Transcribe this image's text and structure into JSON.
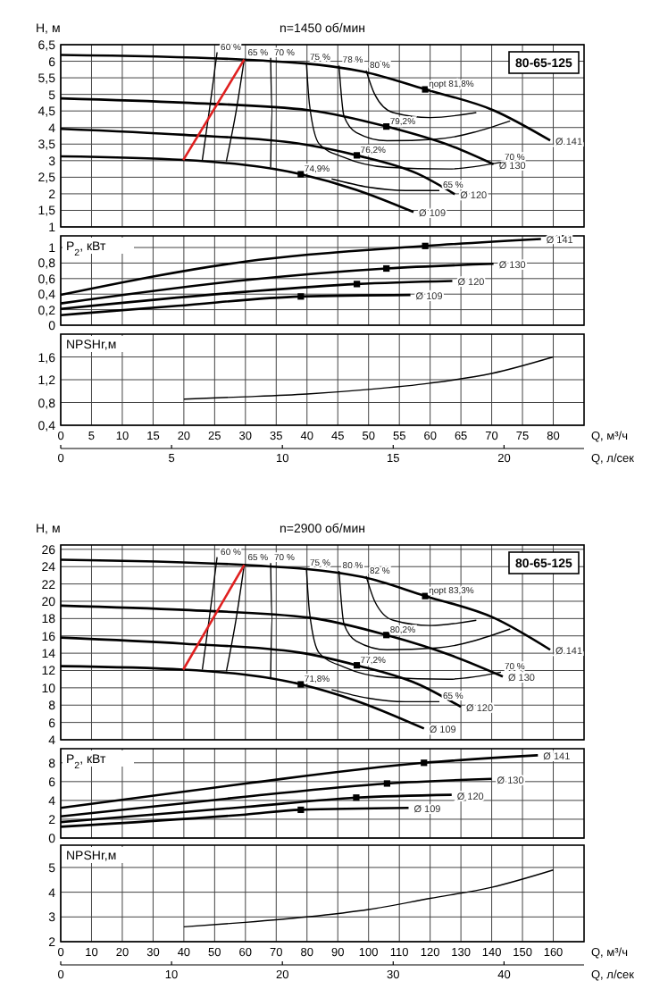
{
  "chart_data": [
    {
      "type": "line",
      "title": "n=1450 об/мин",
      "ylabel": "H, м",
      "xlim": [
        0,
        85
      ],
      "xticks": [
        0,
        5,
        10,
        15,
        20,
        25,
        30,
        35,
        40,
        45,
        50,
        55,
        60,
        65,
        70,
        75,
        80
      ],
      "ylim": [
        1,
        6.5
      ],
      "yticks": [
        1,
        {
          "value": 1.5,
          "label": "1,5"
        },
        2,
        {
          "value": 2.5,
          "label": "2,5"
        },
        3,
        {
          "value": 3.5,
          "label": "3,5"
        },
        4,
        {
          "value": 4.5,
          "label": "4,5"
        },
        5,
        {
          "value": 5.5,
          "label": "5,5"
        },
        6,
        {
          "value": 6.5,
          "label": "6,5"
        }
      ],
      "grid": true,
      "tick_labels": "y",
      "series": [
        {
          "name": "Ø 141",
          "color": "#000000",
          "x": [
            0,
            29.8,
            49,
            59.2,
            70.3,
            79.5
          ],
          "values": [
            6.19,
            6.05,
            5.69,
            5.15,
            4.52,
            3.61
          ]
        },
        {
          "name": "Ø 130",
          "color": "#000000",
          "x": [
            0,
            20,
            40.4,
            52.9,
            63.6,
            70.3
          ],
          "values": [
            4.88,
            4.75,
            4.52,
            4.03,
            3.43,
            2.89
          ]
        },
        {
          "name": "Ø 120",
          "color": "#000000",
          "x": [
            0,
            20,
            38.5,
            48.1,
            57.8,
            64
          ],
          "values": [
            3.96,
            3.78,
            3.52,
            3.16,
            2.62,
            1.99
          ]
        },
        {
          "name": "Ø 109",
          "color": "#000000",
          "x": [
            0,
            20,
            39,
            48,
            57.3
          ],
          "values": [
            3.13,
            3.02,
            2.59,
            2.12,
            1.45
          ]
        },
        {
          "color": "#000000",
          "x": [
            25.4,
            24.2,
            23
          ],
          "values": [
            6.27,
            4.6,
            3.02
          ]
        },
        {
          "color": "#000000",
          "x": [
            29.8,
            28.5,
            26.9
          ],
          "values": [
            6.05,
            4.5,
            2.98
          ]
        },
        {
          "color": "#000000",
          "x": [
            34.1,
            34.3,
            34.1
          ],
          "values": [
            6.1,
            4.5,
            2.8
          ]
        },
        {
          "color": "#000000",
          "x": [
            39.9,
            40.4,
            42,
            46,
            53,
            63,
            71.5
          ],
          "values": [
            5.96,
            4.7,
            3.5,
            3.1,
            2.8,
            2.75,
            2.95
          ]
        },
        {
          "color": "#000000",
          "x": [
            45.2,
            46,
            48,
            53,
            61,
            73
          ],
          "values": [
            5.87,
            4.35,
            3.85,
            3.6,
            3.65,
            4.2
          ]
        },
        {
          "color": "#000000",
          "x": [
            49.6,
            51,
            54,
            60,
            67.5
          ],
          "values": [
            5.72,
            5.0,
            4.45,
            4.3,
            4.45
          ]
        },
        {
          "color": "#000000",
          "x": [
            44,
            50,
            56,
            61.5
          ],
          "values": [
            2.45,
            2.2,
            2.1,
            2.1
          ]
        },
        {
          "color": "#e02020",
          "x": [
            19.9,
            29.8
          ],
          "values": [
            3.02,
            6.05
          ]
        },
        {
          "type": "scatter",
          "marker": "square",
          "color": "#000000",
          "x": [
            59.2,
            52.9,
            48.1,
            39
          ],
          "values": [
            5.15,
            4.03,
            3.16,
            2.59
          ]
        }
      ],
      "annotations": [
        "80-65-125",
        {
          "text": "60 %",
          "x": 25.4,
          "y": 6.27
        },
        {
          "text": "65 %",
          "x": 29.8,
          "y": 6.1
        },
        {
          "text": "70 %",
          "x": 34.1,
          "y": 6.1
        },
        {
          "text": "75 %",
          "x": 39.9,
          "y": 5.96
        },
        {
          "text": "78 %",
          "x": 45.2,
          "y": 5.87
        },
        {
          "text": "80 %",
          "x": 49.6,
          "y": 5.72
        },
        {
          "text": "ηopt 81,8%",
          "x": 59.2,
          "y": 5.15
        },
        {
          "text": "79,2%",
          "x": 52.9,
          "y": 4.03
        },
        {
          "text": "76,2%",
          "x": 48.1,
          "y": 3.16
        },
        {
          "text": "74,9%",
          "x": 39,
          "y": 2.59
        },
        {
          "text": "70 %",
          "x": 71.5,
          "y": 2.95
        },
        {
          "text": "65 %",
          "x": 61.5,
          "y": 2.1
        }
      ]
    },
    {
      "type": "line",
      "ylabel": "P$_{2}$, кВт",
      "xlim": [
        0,
        85
      ],
      "xticks": [
        0,
        5,
        10,
        15,
        20,
        25,
        30,
        35,
        40,
        45,
        50,
        55,
        60,
        65,
        70,
        75,
        80
      ],
      "ylim": [
        0,
        1.15
      ],
      "yticks": [
        0,
        {
          "value": 0.2,
          "label": "0,2"
        },
        {
          "value": 0.4,
          "label": "0,4"
        },
        {
          "value": 0.6,
          "label": "0,6"
        },
        {
          "value": 0.8,
          "label": "0,8"
        },
        1
      ],
      "grid": true,
      "tick_labels": "y",
      "series": [
        {
          "name": "Ø 141",
          "color": "#000000",
          "x": [
            0,
            30,
            59.2,
            78
          ],
          "values": [
            0.39,
            0.82,
            1.02,
            1.11
          ]
        },
        {
          "name": "Ø 130",
          "color": "#000000",
          "x": [
            0,
            30,
            52.9,
            70.3
          ],
          "values": [
            0.28,
            0.58,
            0.73,
            0.79
          ]
        },
        {
          "name": "Ø 120",
          "color": "#000000",
          "x": [
            0,
            30,
            48.1,
            63.6
          ],
          "values": [
            0.21,
            0.43,
            0.53,
            0.57
          ]
        },
        {
          "name": "Ø 109",
          "color": "#000000",
          "x": [
            0,
            19,
            39,
            56.8
          ],
          "values": [
            0.13,
            0.25,
            0.37,
            0.39
          ]
        },
        {
          "type": "scatter",
          "marker": "square",
          "color": "#000000",
          "x": [
            59.2,
            52.9,
            48.1,
            39
          ],
          "values": [
            1.02,
            0.73,
            0.53,
            0.37
          ]
        }
      ]
    },
    {
      "type": "line",
      "ylabel": "NPSHr,м",
      "xlabel": "Q, м³/ч",
      "x2label": "Q, л/сек",
      "xlim": [
        0,
        85
      ],
      "xticks": [
        0,
        5,
        10,
        15,
        20,
        25,
        30,
        35,
        40,
        45,
        50,
        55,
        60,
        65,
        70,
        75,
        80
      ],
      "x2lim": [
        0,
        23.61
      ],
      "x2ticks": [
        0,
        5,
        10,
        15,
        20
      ],
      "ylim": [
        0.4,
        2
      ],
      "yticks": [
        {
          "value": 0.4,
          "label": "0,4"
        },
        {
          "value": 0.8,
          "label": "0,8"
        },
        {
          "value": 1.2,
          "label": "1,2"
        },
        {
          "value": 1.6,
          "label": "1,6"
        }
      ],
      "grid": true,
      "series": [
        {
          "color": "#000000",
          "x": [
            20,
            30,
            40,
            50,
            60,
            70,
            80
          ],
          "values": [
            0.86,
            0.9,
            0.95,
            1.03,
            1.14,
            1.31,
            1.6
          ]
        }
      ]
    },
    {
      "type": "line",
      "title": "n=2900 об/мин",
      "ylabel": "H, м",
      "xlim": [
        0,
        170
      ],
      "xticks": [
        0,
        10,
        20,
        30,
        40,
        50,
        60,
        70,
        80,
        90,
        100,
        110,
        120,
        130,
        140,
        150,
        160
      ],
      "ylim": [
        4,
        26.5
      ],
      "yticks": [
        4,
        6,
        8,
        10,
        12,
        14,
        16,
        18,
        20,
        22,
        24,
        26
      ],
      "grid": true,
      "tick_labels": "y",
      "series": [
        {
          "name": "Ø 141",
          "color": "#000000",
          "x": [
            0,
            59.6,
            98,
            118.4,
            140.6,
            159
          ],
          "values": [
            24.8,
            24.2,
            22.8,
            20.6,
            18.1,
            14.4
          ]
        },
        {
          "name": "Ø 130",
          "color": "#000000",
          "x": [
            0,
            40,
            80.8,
            105.8,
            127.2,
            143.6
          ],
          "values": [
            19.5,
            19,
            18.1,
            16.1,
            13.7,
            11.3
          ]
        },
        {
          "name": "Ø 120",
          "color": "#000000",
          "x": [
            0,
            40,
            77,
            96.2,
            115.6,
            130
          ],
          "values": [
            15.8,
            15.1,
            14.1,
            12.6,
            10.5,
            7.8
          ]
        },
        {
          "name": "Ø 109",
          "color": "#000000",
          "x": [
            0,
            40,
            78,
            96,
            118
          ],
          "values": [
            12.5,
            12.1,
            10.4,
            8.5,
            5.3
          ]
        },
        {
          "color": "#000000",
          "x": [
            50.8,
            48.4,
            46
          ],
          "values": [
            25.1,
            18.4,
            12.1
          ]
        },
        {
          "color": "#000000",
          "x": [
            59.6,
            57,
            53.8
          ],
          "values": [
            24.2,
            18,
            11.9
          ]
        },
        {
          "color": "#000000",
          "x": [
            68.2,
            68.6,
            68.2
          ],
          "values": [
            24.4,
            18,
            11.2
          ]
        },
        {
          "color": "#000000",
          "x": [
            79.8,
            80.8,
            84,
            92,
            106,
            126,
            143
          ],
          "values": [
            23.8,
            18.8,
            14,
            12.4,
            11.2,
            11,
            11.8
          ]
        },
        {
          "color": "#000000",
          "x": [
            90.4,
            92,
            96,
            106,
            122,
            146
          ],
          "values": [
            23.5,
            17.4,
            15.4,
            14.4,
            14.6,
            16.8
          ]
        },
        {
          "color": "#000000",
          "x": [
            99.2,
            102,
            108,
            120,
            135
          ],
          "values": [
            22.9,
            20,
            17.8,
            17.2,
            17.8
          ]
        },
        {
          "color": "#000000",
          "x": [
            88,
            100,
            112,
            123
          ],
          "values": [
            9.8,
            8.8,
            8.4,
            8.4
          ]
        },
        {
          "color": "#e02020",
          "x": [
            39.8,
            59.6
          ],
          "values": [
            12.1,
            24.2
          ]
        },
        {
          "type": "scatter",
          "marker": "square",
          "color": "#000000",
          "x": [
            118.4,
            105.8,
            96.2,
            78
          ],
          "values": [
            20.6,
            16.1,
            12.6,
            10.4
          ]
        }
      ],
      "annotations": [
        "80-65-125",
        {
          "text": "60 %",
          "x": 50.8,
          "y": 25.1
        },
        {
          "text": "65 %",
          "x": 59.6,
          "y": 24.4
        },
        {
          "text": "70 %",
          "x": 68.2,
          "y": 24.4
        },
        {
          "text": "75 %",
          "x": 79.8,
          "y": 23.8
        },
        {
          "text": "80 %",
          "x": 90.4,
          "y": 23.5
        },
        {
          "text": "82 %",
          "x": 99.2,
          "y": 22.9
        },
        {
          "text": "ηopt 83,3%",
          "x": 118.4,
          "y": 20.6
        },
        {
          "text": "80,2%",
          "x": 105.8,
          "y": 16.1
        },
        {
          "text": "77,2%",
          "x": 96.2,
          "y": 12.6
        },
        {
          "text": "71,8%",
          "x": 78,
          "y": 10.4
        },
        {
          "text": "70 %",
          "x": 143,
          "y": 11.8
        },
        {
          "text": "65 %",
          "x": 123,
          "y": 8.4
        }
      ]
    },
    {
      "type": "line",
      "ylabel": "P$_{2}$, кВт",
      "xlim": [
        0,
        170
      ],
      "xticks": [
        0,
        10,
        20,
        30,
        40,
        50,
        60,
        70,
        80,
        90,
        100,
        110,
        120,
        130,
        140,
        150,
        160
      ],
      "ylim": [
        0,
        9.5
      ],
      "yticks": [
        0,
        2,
        4,
        6,
        8
      ],
      "grid": true,
      "tick_labels": "y",
      "series": [
        {
          "name": "Ø 141",
          "color": "#000000",
          "x": [
            0,
            60,
            118,
            155
          ],
          "values": [
            3.2,
            5.8,
            8.0,
            8.8
          ]
        },
        {
          "name": "Ø 130",
          "color": "#000000",
          "x": [
            0,
            60,
            106,
            140
          ],
          "values": [
            2.3,
            4.4,
            5.8,
            6.3
          ]
        },
        {
          "name": "Ø 120",
          "color": "#000000",
          "x": [
            0,
            60,
            96,
            127
          ],
          "values": [
            1.7,
            3.3,
            4.3,
            4.6
          ]
        },
        {
          "name": "Ø 109",
          "color": "#000000",
          "x": [
            0,
            60,
            78,
            113
          ],
          "values": [
            1.2,
            2.5,
            3.0,
            3.2
          ]
        },
        {
          "type": "scatter",
          "marker": "square",
          "color": "#000000",
          "x": [
            118,
            106,
            96,
            78
          ],
          "values": [
            8.0,
            5.8,
            4.3,
            3.0
          ]
        }
      ]
    },
    {
      "type": "line",
      "ylabel": "NPSHr,м",
      "xlabel": "Q, м³/ч",
      "x2label": "Q, л/сек",
      "xlim": [
        0,
        170
      ],
      "xticks": [
        0,
        10,
        20,
        30,
        40,
        50,
        60,
        70,
        80,
        90,
        100,
        110,
        120,
        130,
        140,
        150,
        160
      ],
      "x2lim": [
        0,
        47.22
      ],
      "x2ticks": [
        0,
        10,
        20,
        30,
        40
      ],
      "ylim": [
        2,
        5.9
      ],
      "yticks": [
        2,
        3,
        4,
        5
      ],
      "grid": true,
      "series": [
        {
          "color": "#000000",
          "x": [
            40,
            60,
            80,
            100,
            120,
            140,
            160
          ],
          "values": [
            2.6,
            2.78,
            3.0,
            3.3,
            3.75,
            4.2,
            4.9
          ]
        }
      ]
    }
  ]
}
